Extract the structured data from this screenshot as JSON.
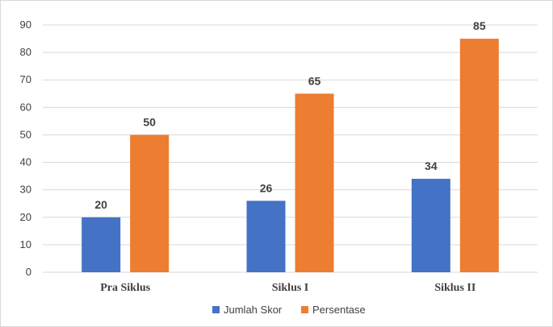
{
  "chart_data": {
    "type": "bar",
    "categories": [
      "Pra Siklus",
      "Siklus I",
      "Siklus II"
    ],
    "series": [
      {
        "name": "Jumlah Skor",
        "values": [
          20,
          26,
          34
        ],
        "color": "#4472C4"
      },
      {
        "name": "Persentase",
        "values": [
          50,
          65,
          85
        ],
        "color": "#ED7D31"
      }
    ],
    "ylim": [
      0,
      90
    ],
    "yticks": [
      0,
      10,
      20,
      30,
      40,
      50,
      60,
      70,
      80,
      90
    ],
    "grid": true,
    "legend": "bottom-center",
    "data_labels": true
  }
}
